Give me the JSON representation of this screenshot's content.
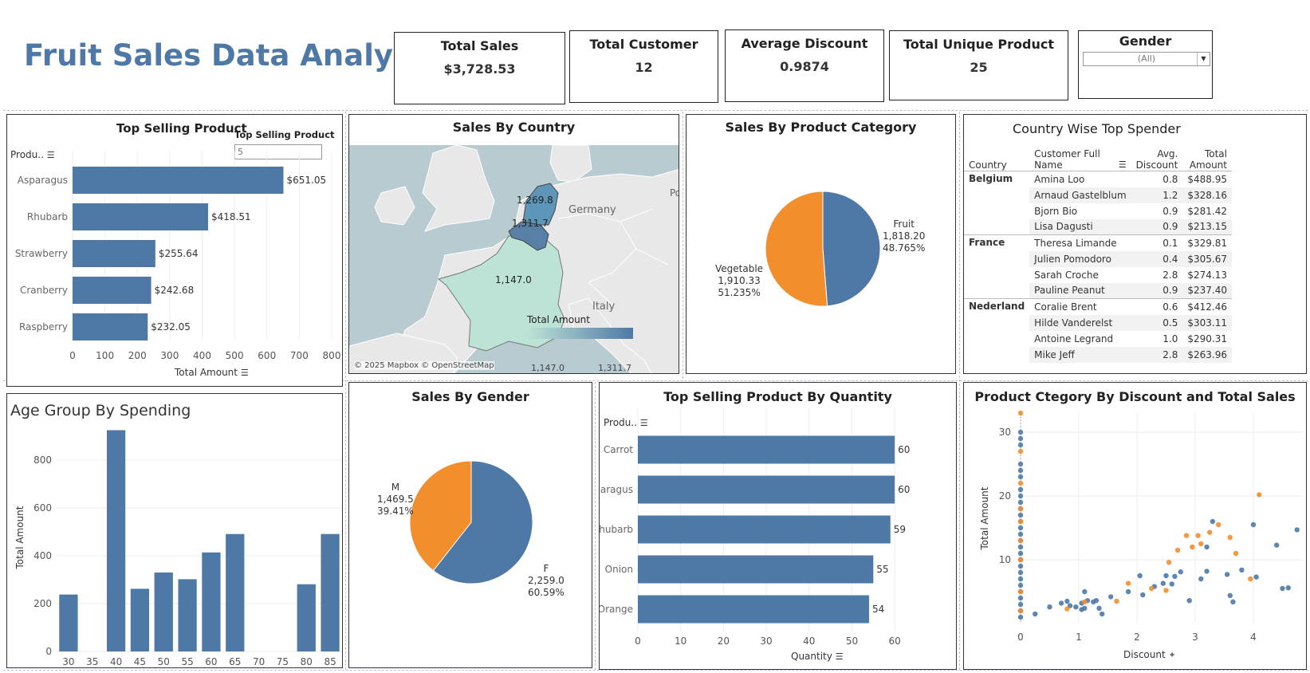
{
  "dashboard": {
    "title": "Fruit Sales Data Analysis"
  },
  "kpis": {
    "total_sales": {
      "label": "Total Sales",
      "value": "$3,728.53"
    },
    "total_customer": {
      "label": "Total Customer",
      "value": "12"
    },
    "avg_discount": {
      "label": "Average Discount",
      "value": "0.9874"
    },
    "unique_product": {
      "label": "Total Unique Product",
      "value": "25"
    }
  },
  "gender_filter": {
    "label": "Gender",
    "value": "(All)"
  },
  "top_selling": {
    "title": "Top Selling Product",
    "param_label": "Top Selling Product",
    "param_value": "5",
    "row_header": "Produ..",
    "xlabel": "Total Amount"
  },
  "sales_country": {
    "title": "Sales By Country",
    "attribution": "© 2025 Mapbox © OpenStreetMap",
    "legend_title": "Total Amount",
    "legend_min": "1,147.0",
    "legend_max": "1,311.7",
    "place_germany": "Germany",
    "place_italy": "Italy",
    "place_po": "Po"
  },
  "category_pie": {
    "title": "Sales By Product Category"
  },
  "top_spender": {
    "title": "Country Wise Top Spender",
    "headers": {
      "country": "Country",
      "name1": "Customer Full",
      "name2": "Name",
      "disc1": "Avg.",
      "disc2": "Discount",
      "amt1": "Total",
      "amt2": "Amount"
    },
    "groups": [
      {
        "country": "Belgium",
        "rows": [
          {
            "name": "Amina Loo",
            "disc": "0.8",
            "amt": "$488.95"
          },
          {
            "name": "Arnaud Gastelblum",
            "disc": "1.2",
            "amt": "$328.16"
          },
          {
            "name": "Bjorn Bio",
            "disc": "0.9",
            "amt": "$281.42"
          },
          {
            "name": "Lisa Dagusti",
            "disc": "0.9",
            "amt": "$213.15"
          }
        ]
      },
      {
        "country": "France",
        "rows": [
          {
            "name": "Theresa Limande",
            "disc": "0.1",
            "amt": "$329.81"
          },
          {
            "name": "Julien Pomodoro",
            "disc": "0.4",
            "amt": "$305.67"
          },
          {
            "name": "Sarah Croche",
            "disc": "2.8",
            "amt": "$274.13"
          },
          {
            "name": "Pauline Peanut",
            "disc": "0.9",
            "amt": "$237.40"
          }
        ]
      },
      {
        "country": "Nederland",
        "rows": [
          {
            "name": "Coralie Brent",
            "disc": "0.6",
            "amt": "$412.46"
          },
          {
            "name": "Hilde Vanderelst",
            "disc": "0.5",
            "amt": "$303.11"
          },
          {
            "name": "Antoine Legrand",
            "disc": "1.0",
            "amt": "$290.31"
          },
          {
            "name": "Mike Jeff",
            "disc": "2.8",
            "amt": "$263.96"
          }
        ]
      }
    ]
  },
  "age_group": {
    "title": "Age Group By Spending",
    "ylabel": "Total Amount"
  },
  "gender_pie": {
    "title": "Sales By Gender"
  },
  "top_quantity": {
    "title": "Top Selling Product By Quantity",
    "row_header": "Produ..",
    "xlabel": "Quantity"
  },
  "discount_scatter": {
    "title": "Product Ctegory By Discount and Total Sales",
    "xlabel": "Discount",
    "ylabel": "Total Amount"
  },
  "colors": {
    "blue": "#4e79a7",
    "orange": "#f28e2b"
  },
  "chart_data": [
    {
      "id": "top_selling",
      "type": "bar",
      "orientation": "horizontal",
      "categories": [
        "Asparagus",
        "Rhubarb",
        "Strawberry",
        "Cranberry",
        "Raspberry"
      ],
      "values": [
        651.05,
        418.51,
        255.64,
        242.68,
        232.05
      ],
      "value_labels": [
        "$651.05",
        "$418.51",
        "$255.64",
        "$242.68",
        "$232.05"
      ],
      "xlim": [
        0,
        800
      ],
      "xticks": [
        0,
        100,
        200,
        300,
        400,
        500,
        600,
        700,
        800
      ]
    },
    {
      "id": "sales_country",
      "type": "heatmap",
      "regions": [
        "Nederland",
        "Belgium",
        "France"
      ],
      "values": [
        1269.8,
        1311.7,
        1147.0
      ],
      "value_labels": [
        "1,269.8",
        "1,311.7",
        "1,147.0"
      ]
    },
    {
      "id": "category_pie",
      "type": "pie",
      "slices": [
        {
          "name": "Fruit",
          "value": 1818.2,
          "label": "1,818.20",
          "pct": "48.765%"
        },
        {
          "name": "Vegetable",
          "value": 1910.33,
          "label": "1,910.33",
          "pct": "51.235%"
        }
      ]
    },
    {
      "id": "age_group",
      "type": "bar",
      "categories": [
        "30",
        "35",
        "40",
        "45",
        "50",
        "55",
        "60",
        "65",
        "70",
        "75",
        "80",
        "85"
      ],
      "values": [
        238,
        0,
        925,
        262,
        330,
        302,
        414,
        491,
        0,
        0,
        281,
        491
      ],
      "ylim": [
        0,
        1000
      ],
      "yticks": [
        0,
        200,
        400,
        600,
        800
      ]
    },
    {
      "id": "gender_pie",
      "type": "pie",
      "slices": [
        {
          "name": "F",
          "value": 2259.0,
          "label": "2,259.0",
          "pct": "60.59%"
        },
        {
          "name": "M",
          "value": 1469.5,
          "label": "1,469.5",
          "pct": "39.41%"
        }
      ]
    },
    {
      "id": "top_quantity",
      "type": "bar",
      "orientation": "horizontal",
      "categories": [
        "Carrot",
        "Asparagus",
        "Rhubarb",
        "Onion",
        "Orange"
      ],
      "values": [
        60,
        60,
        59,
        55,
        54
      ],
      "xlim": [
        0,
        65
      ],
      "xticks": [
        0,
        10,
        20,
        30,
        40,
        50,
        60
      ]
    },
    {
      "id": "discount_scatter",
      "type": "scatter",
      "xlim": [
        0,
        4.85
      ],
      "ylim": [
        0,
        33
      ],
      "xticks": [
        0,
        1,
        2,
        3,
        4
      ],
      "yticks": [
        10,
        20,
        30
      ],
      "series": [
        {
          "name": "Fruit",
          "color": "blue",
          "points": [
            [
              0,
              1
            ],
            [
              0,
              2
            ],
            [
              0,
              3
            ],
            [
              0,
              4
            ],
            [
              0,
              5
            ],
            [
              0,
              6
            ],
            [
              0,
              7
            ],
            [
              0,
              8
            ],
            [
              0,
              9
            ],
            [
              0,
              10
            ],
            [
              0,
              11
            ],
            [
              0,
              12
            ],
            [
              0,
              13
            ],
            [
              0,
              14
            ],
            [
              0,
              15
            ],
            [
              0,
              16
            ],
            [
              0,
              17
            ],
            [
              0,
              18
            ],
            [
              0,
              19
            ],
            [
              0,
              20
            ],
            [
              0,
              21
            ],
            [
              0,
              23
            ],
            [
              0,
              24
            ],
            [
              0,
              25
            ],
            [
              0,
              28
            ],
            [
              0,
              29
            ],
            [
              0,
              30
            ],
            [
              0.25,
              1.5
            ],
            [
              0.5,
              2.6
            ],
            [
              0.7,
              3.2
            ],
            [
              0.8,
              3.5
            ],
            [
              0.85,
              2.8
            ],
            [
              0.95,
              2.6
            ],
            [
              1.05,
              3.2
            ],
            [
              1.05,
              2.2
            ],
            [
              1.1,
              5
            ],
            [
              1.15,
              3.6
            ],
            [
              1.1,
              2.4
            ],
            [
              1.25,
              3.4
            ],
            [
              1.3,
              3.6
            ],
            [
              1.35,
              2.4
            ],
            [
              1.4,
              1.5
            ],
            [
              1.55,
              4.2
            ],
            [
              1.85,
              5
            ],
            [
              2.05,
              7.5
            ],
            [
              2.1,
              4.5
            ],
            [
              2.3,
              5.8
            ],
            [
              2.45,
              6.3
            ],
            [
              2.5,
              7.5
            ],
            [
              2.6,
              6.2
            ],
            [
              2.65,
              7.4
            ],
            [
              2.75,
              8.1
            ],
            [
              2.9,
              3.6
            ],
            [
              3.1,
              7
            ],
            [
              3.2,
              8.2
            ],
            [
              3.2,
              12
            ],
            [
              3.3,
              16
            ],
            [
              3.6,
              4.4
            ],
            [
              3.65,
              3.4
            ],
            [
              3.55,
              7.7
            ],
            [
              3.8,
              8.4
            ],
            [
              4,
              15.5
            ],
            [
              4.05,
              7.3
            ],
            [
              4.4,
              12.3
            ],
            [
              4.5,
              5.5
            ],
            [
              4.6,
              5.6
            ],
            [
              4.75,
              14.7
            ]
          ]
        },
        {
          "name": "Vegetable",
          "color": "orange",
          "points": [
            [
              0,
              2
            ],
            [
              0,
              5
            ],
            [
              0,
              10
            ],
            [
              0,
              13
            ],
            [
              0,
              16
            ],
            [
              0,
              18
            ],
            [
              0,
              22
            ],
            [
              0,
              27
            ],
            [
              0,
              33
            ],
            [
              0.8,
              2.3
            ],
            [
              1.1,
              3.4
            ],
            [
              1.65,
              3.5
            ],
            [
              1.85,
              6.3
            ],
            [
              2.25,
              5.5
            ],
            [
              2.5,
              5.2
            ],
            [
              2.55,
              9.6
            ],
            [
              2.7,
              11.5
            ],
            [
              2.85,
              13.8
            ],
            [
              2.95,
              12
            ],
            [
              3.05,
              13.8
            ],
            [
              3.1,
              12.5
            ],
            [
              3.25,
              14.3
            ],
            [
              3.4,
              15.5
            ],
            [
              3.6,
              13.5
            ],
            [
              3.7,
              11
            ],
            [
              3.95,
              7
            ],
            [
              4.1,
              20.2
            ]
          ]
        }
      ]
    }
  ]
}
